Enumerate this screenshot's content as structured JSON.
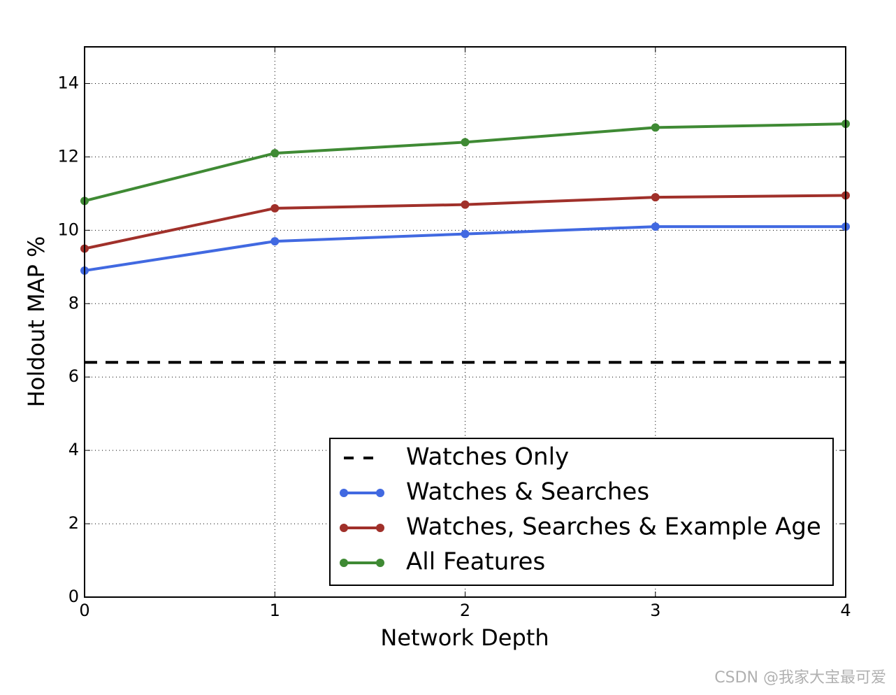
{
  "chart_data": {
    "type": "line",
    "x": [
      0,
      1,
      2,
      3,
      4
    ],
    "xlim": [
      0,
      4
    ],
    "xticks": [
      0,
      1,
      2,
      3,
      4
    ],
    "ylim": [
      0,
      15
    ],
    "yticks": [
      0,
      2,
      4,
      6,
      8,
      10,
      12,
      14
    ],
    "xlabel": "Network Depth",
    "ylabel": "Holdout MAP %",
    "grid": true,
    "legend_position": "lower right",
    "series": [
      {
        "name": "Watches Only",
        "color": "#000000",
        "line_style": "dashed",
        "marker": "none",
        "values": [
          6.4,
          6.4,
          6.4,
          6.4,
          6.4
        ]
      },
      {
        "name": "Watches & Searches",
        "color": "#4169e1",
        "line_style": "solid",
        "marker": "circle",
        "values": [
          8.9,
          9.7,
          9.9,
          10.1,
          10.1
        ]
      },
      {
        "name": "Watches, Searches & Example Age",
        "color": "#a0302a",
        "line_style": "solid",
        "marker": "circle",
        "values": [
          9.5,
          10.6,
          10.7,
          10.9,
          10.95
        ]
      },
      {
        "name": "All Features",
        "color": "#3f8a34",
        "line_style": "solid",
        "marker": "circle",
        "values": [
          10.8,
          12.1,
          12.4,
          12.8,
          12.9
        ]
      }
    ],
    "watermark": "CSDN @我家大宝最可爱"
  }
}
